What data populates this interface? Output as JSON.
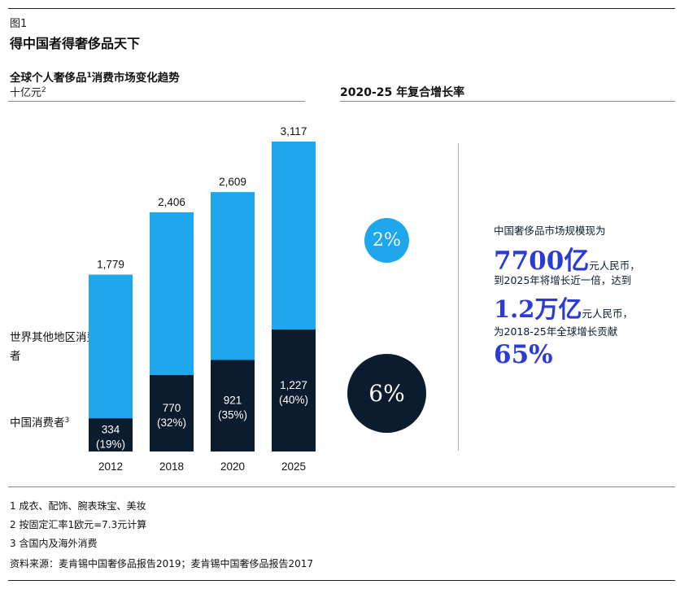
{
  "figure_label": "图1",
  "figure_title": "得中国者得奢侈品天下",
  "chart_subtitle": "全球个人奢侈品",
  "chart_subtitle_sup": "1",
  "chart_subtitle_rest": "消费市场变化趋势",
  "unit_label": "十亿元",
  "unit_sup": "2",
  "cagr_title": "2020-25 年复合增长率",
  "legend": {
    "rest_of_world": "世界其他地区消费者",
    "china": "中国消费者",
    "china_sup": "3"
  },
  "cagr": {
    "rest_of_world": "2%",
    "china": "6%"
  },
  "colors": {
    "rest_of_world": "#1ea7ec",
    "china": "#0b1c2e",
    "highlight": "#2a3bd7"
  },
  "chart_data": {
    "type": "bar",
    "stacked": true,
    "categories": [
      "2012",
      "2018",
      "2020",
      "2025"
    ],
    "totals": [
      1779,
      2406,
      2609,
      3117
    ],
    "total_labels": [
      "1,779",
      "2,406",
      "2,609",
      "3,117"
    ],
    "series": [
      {
        "name": "中国消费者",
        "values": [
          334,
          770,
          921,
          1227
        ],
        "labels": [
          "334",
          "770",
          "921",
          "1,227"
        ],
        "share_labels": [
          "(19%)",
          "(32%)",
          "(35%)",
          "(40%)"
        ]
      },
      {
        "name": "世界其他地区消费者",
        "values": [
          1445,
          1636,
          1688,
          1890
        ]
      }
    ],
    "ylim": [
      0,
      3117
    ]
  },
  "callout": {
    "line1": "中国奢侈品市场规模现为",
    "big1": "7700亿",
    "small1": "元人民币，",
    "line2": "到2025年将增长近一倍，达到",
    "big2": "1.2万亿",
    "small2": "元人民币，",
    "line3": "为2018-25年全球增长贡献",
    "big3": "65%"
  },
  "notes": [
    "1 成衣、配饰、腕表珠宝、美妆",
    "2 按固定汇率1欧元=7.3元计算",
    "3 含国内及海外消费",
    "资料来源：麦肯锡中国奢侈品报告2019；麦肯锡中国奢侈品报告2017"
  ]
}
